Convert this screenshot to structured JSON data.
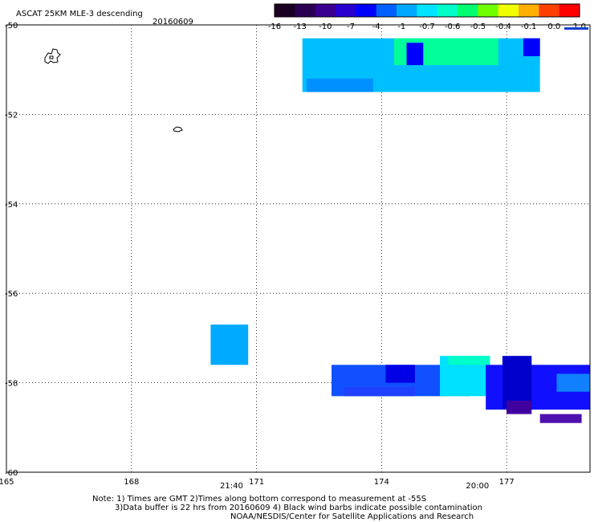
{
  "header": {
    "title": "ASCAT 25KM MLE-3 descending",
    "date": "20160609"
  },
  "colorbar": {
    "labels": [
      "-16",
      "-13",
      "-10",
      "-7",
      "-4",
      "-1",
      "-0.7",
      "-0.6",
      "-0.5",
      "-0.4",
      "-0.1",
      "0.0",
      "1.0"
    ],
    "colors": [
      "#1a0022",
      "#2a0050",
      "#3a0090",
      "#2a00d0",
      "#0000ff",
      "#0060ff",
      "#00a8ff",
      "#00e4ff",
      "#00ffc8",
      "#00ff70",
      "#70ff00",
      "#f0ff00",
      "#ffb000",
      "#ff4000",
      "#ff0000"
    ]
  },
  "footer": {
    "line1": "Note: 1) Times are GMT 2)Times along bottom correspond to measurement at -55S",
    "line2": "3)Data buffer is 22 hrs from 20160609 4) Black wind barbs indicate possible contamination",
    "line3": "NOAA/NESDIS/Center for Satellite Applications and Research"
  },
  "chart_data": {
    "type": "heatmap",
    "xlim": [
      165,
      179
    ],
    "ylim": [
      -60,
      -50
    ],
    "x_ticks": [
      165,
      168,
      171,
      174,
      177
    ],
    "y_ticks": [
      -50,
      -52,
      -54,
      -56,
      -58,
      -60
    ],
    "x_tick_labels": [
      "165",
      "168",
      "171",
      "174",
      "177"
    ],
    "y_tick_labels": [
      "-50",
      "-52",
      "-54",
      "-56",
      "-58",
      "-60"
    ],
    "grid": true,
    "time_labels": [
      {
        "lon": 170.4,
        "text": "21:40",
        "color": "#cc0000"
      },
      {
        "lon": 176.3,
        "text": "20:00",
        "color": "#cc0000"
      }
    ],
    "swaths": [
      {
        "lon0": 172.1,
        "lon1": 177.8,
        "lat0": -50.3,
        "lat1": -51.5,
        "color": "#00bfff"
      },
      {
        "lon0": 174.3,
        "lon1": 176.8,
        "lat0": -50.3,
        "lat1": -50.9,
        "color": "#00ff9a"
      },
      {
        "lon0": 172.2,
        "lon1": 173.8,
        "lat0": -51.2,
        "lat1": -51.5,
        "color": "#0090ff"
      },
      {
        "lon0": 174.6,
        "lon1": 175.0,
        "lat0": -50.4,
        "lat1": -50.9,
        "color": "#0000ff"
      },
      {
        "lon0": 177.4,
        "lon1": 177.8,
        "lat0": -50.3,
        "lat1": -50.7,
        "color": "#0000ff"
      },
      {
        "lon0": 169.9,
        "lon1": 170.8,
        "lat0": -56.7,
        "lat1": -57.6,
        "color": "#00aaff"
      },
      {
        "lon0": 172.8,
        "lon1": 176.1,
        "lat0": -57.6,
        "lat1": -58.3,
        "color": "#1050ff"
      },
      {
        "lon0": 173.1,
        "lon1": 174.8,
        "lat0": -58.1,
        "lat1": -58.3,
        "color": "#2040ff"
      },
      {
        "lon0": 174.1,
        "lon1": 174.8,
        "lat0": -57.6,
        "lat1": -58.0,
        "color": "#0000e6"
      },
      {
        "lon0": 175.4,
        "lon1": 176.6,
        "lat0": -57.4,
        "lat1": -58.3,
        "color": "#00e0ff"
      },
      {
        "lon0": 175.6,
        "lon1": 176.6,
        "lat0": -57.4,
        "lat1": -57.6,
        "color": "#00ffc8"
      },
      {
        "lon0": 176.5,
        "lon1": 179.0,
        "lat0": -57.6,
        "lat1": -58.6,
        "color": "#1010ff"
      },
      {
        "lon0": 176.9,
        "lon1": 177.6,
        "lat0": -57.4,
        "lat1": -58.6,
        "color": "#0000cc"
      },
      {
        "lon0": 177.0,
        "lon1": 177.6,
        "lat0": -58.4,
        "lat1": -58.7,
        "color": "#4000a0"
      },
      {
        "lon0": 177.8,
        "lon1": 178.8,
        "lat0": -58.7,
        "lat1": -58.9,
        "color": "#5010b0"
      },
      {
        "lon0": 178.2,
        "lon1": 179.0,
        "lat0": -57.8,
        "lat1": -58.2,
        "color": "#1080ff"
      }
    ]
  }
}
